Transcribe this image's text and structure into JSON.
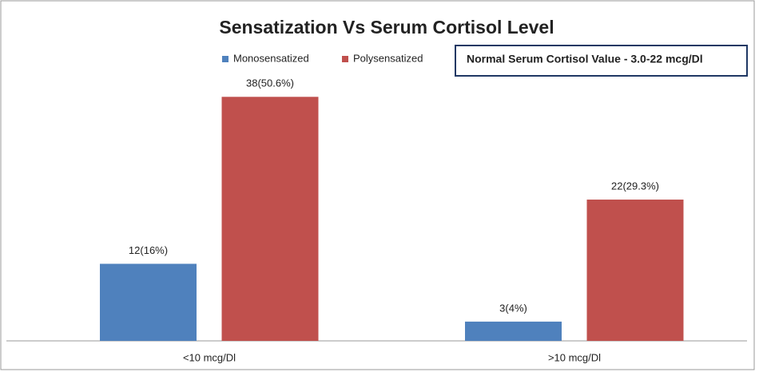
{
  "chart_data": {
    "type": "bar",
    "title": "Sensatization Vs Serum Cortisol Level",
    "annotation": "Normal Serum Cortisol Value -  3.0-22 mcg/Dl",
    "categories": [
      "<10 mcg/Dl",
      ">10 mcg/Dl"
    ],
    "series": [
      {
        "name": "Monosensatized",
        "color": "#4f81bd",
        "values": [
          12,
          3
        ],
        "value_labels": [
          "12(16%)",
          "3(4%)"
        ]
      },
      {
        "name": "Polysensatized",
        "color": "#c0504d",
        "values": [
          38,
          22
        ],
        "value_labels": [
          "38(50.6%)",
          "22(29.3%)"
        ]
      }
    ],
    "ylim": [
      0,
      45
    ],
    "legend": "top"
  }
}
